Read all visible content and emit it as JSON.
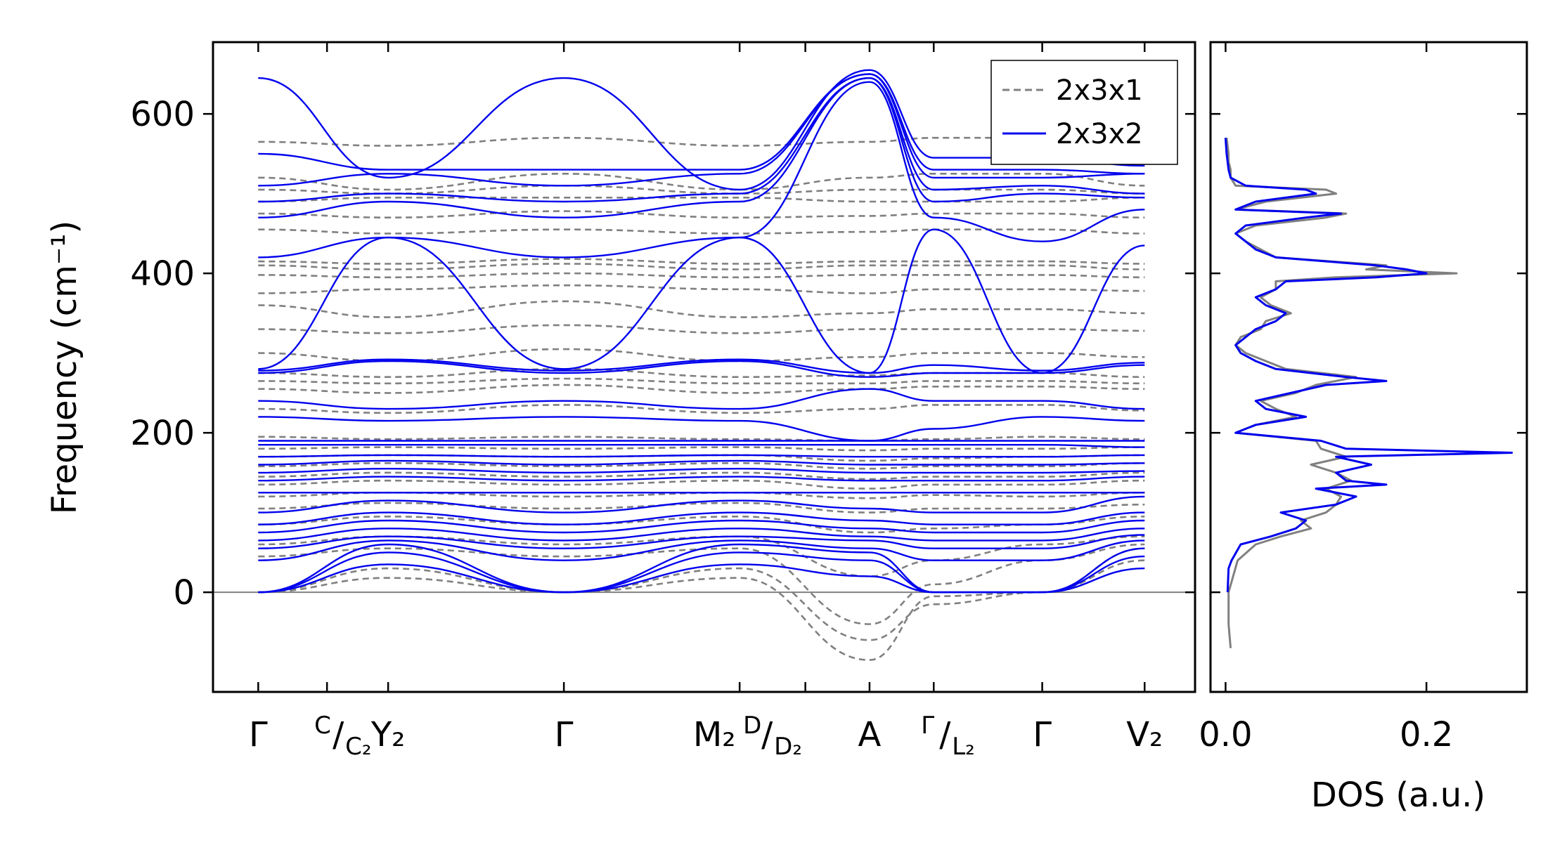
{
  "chart_data": [
    {
      "type": "line",
      "subtype": "phonon-band-structure",
      "ylabel": "Frequency (cm⁻¹)",
      "ylim": [
        -125,
        690
      ],
      "yticks": [
        0,
        200,
        400,
        600
      ],
      "ytick_labels": [
        "0",
        "200",
        "400",
        "600"
      ],
      "zero_line": true,
      "kpath_segments": [
        [
          "Γ",
          "C/C₂",
          "Y₂",
          "Γ",
          "M₂",
          "D/D₂",
          "A",
          "Γ/L₂"
        ],
        [
          "Γ/L₂",
          "Γ",
          "V₂"
        ]
      ],
      "xticks": [
        {
          "x": 0.0,
          "label": "Γ",
          "main": "Γ",
          "sup": "",
          "sub": ""
        },
        {
          "x": 0.225,
          "label": "C/C₂",
          "main": "",
          "sup": "C",
          "sub": "C₂"
        },
        {
          "x": 0.425,
          "label": "Y₂",
          "main": "Y₂",
          "sup": "",
          "sub": ""
        },
        {
          "x": 1.0,
          "label": "Γ",
          "main": "Γ",
          "sup": "",
          "sub": ""
        },
        {
          "x": 1.575,
          "label": "M₂ D/D₂",
          "main": "M₂",
          "sup": "D",
          "sub": "D₂"
        },
        {
          "x": 1.79,
          "label": "",
          "main": "",
          "sup": "",
          "sub": ""
        },
        {
          "x": 2.0,
          "label": "A",
          "main": "A",
          "sup": "",
          "sub": ""
        },
        {
          "x": 2.21,
          "label": "Γ/L₂",
          "main": "",
          "sup": "Γ",
          "sub": "L₂"
        },
        {
          "x": 2.565,
          "label": "Γ",
          "main": "Γ",
          "sup": "",
          "sub": ""
        },
        {
          "x": 2.9,
          "label": "V₂",
          "main": "V₂",
          "sup": "",
          "sub": ""
        }
      ],
      "xlim": [
        -0.148,
        3.065
      ],
      "legend": {
        "placement": "top-right"
      },
      "series": [
        {
          "name": "2x3x1",
          "color": "#808080",
          "dash": true,
          "path_x": [
            0.0,
            0.425,
            1.0,
            1.575,
            2.0,
            2.21,
            2.565,
            2.9
          ],
          "bands": [
            [
              0,
              18,
              0,
              18,
              -85,
              -5,
              0,
              40
            ],
            [
              0,
              30,
              0,
              30,
              -60,
              -15,
              0,
              55
            ],
            [
              45,
              55,
              45,
              55,
              -40,
              10,
              40,
              60
            ],
            [
              60,
              70,
              60,
              70,
              20,
              40,
              60,
              70
            ],
            [
              85,
              95,
              85,
              95,
              75,
              80,
              85,
              95
            ],
            [
              105,
              112,
              105,
              112,
              100,
              105,
              105,
              110
            ],
            [
              120,
              125,
              120,
              125,
              118,
              122,
              120,
              125
            ],
            [
              135,
              140,
              135,
              140,
              130,
              135,
              135,
              140
            ],
            [
              145,
              150,
              145,
              150,
              142,
              145,
              145,
              150
            ],
            [
              158,
              162,
              158,
              162,
              155,
              158,
              158,
              162
            ],
            [
              170,
              172,
              170,
              172,
              165,
              168,
              170,
              172
            ],
            [
              180,
              182,
              180,
              182,
              178,
              180,
              180,
              182
            ],
            [
              195,
              192,
              195,
              192,
              190,
              192,
              195,
              192
            ],
            [
              230,
              225,
              235,
              225,
              230,
              235,
              235,
              228
            ],
            [
              255,
              250,
              260,
              250,
              255,
              258,
              258,
              255
            ],
            [
              265,
              262,
              268,
              262,
              262,
              265,
              265,
              262
            ],
            [
              275,
              270,
              280,
              270,
              272,
              275,
              275,
              270
            ],
            [
              300,
              290,
              305,
              290,
              295,
              300,
              300,
              295
            ],
            [
              330,
              325,
              335,
              325,
              330,
              330,
              330,
              328
            ],
            [
              360,
              345,
              365,
              345,
              350,
              355,
              355,
              350
            ],
            [
              375,
              380,
              385,
              380,
              375,
              380,
              380,
              378
            ],
            [
              398,
              395,
              400,
              395,
              398,
              398,
              398,
              395
            ],
            [
              410,
              405,
              412,
              405,
              410,
              410,
              410,
              405
            ],
            [
              415,
              412,
              418,
              412,
              415,
              415,
              415,
              412
            ],
            [
              455,
              450,
              455,
              450,
              452,
              455,
              455,
              450
            ],
            [
              475,
              470,
              478,
              470,
              472,
              475,
              475,
              470
            ],
            [
              490,
              495,
              495,
              495,
              490,
              490,
              490,
              495
            ],
            [
              505,
              500,
              510,
              500,
              505,
              505,
              505,
              500
            ],
            [
              520,
              505,
              525,
              505,
              520,
              525,
              525,
              510
            ],
            [
              565,
              560,
              570,
              560,
              565,
              570,
              570,
              565
            ]
          ]
        },
        {
          "name": "2x3x2",
          "color": "#0000ee",
          "dash": false,
          "path_x": [
            0.0,
            0.425,
            1.0,
            1.575,
            2.0,
            2.21,
            2.565,
            2.9
          ],
          "bands": [
            [
              0,
              35,
              0,
              35,
              20,
              0,
              0,
              30
            ],
            [
              0,
              50,
              0,
              50,
              40,
              0,
              0,
              45
            ],
            [
              0,
              60,
              0,
              60,
              50,
              0,
              0,
              55
            ],
            [
              40,
              65,
              40,
              65,
              55,
              40,
              40,
              65
            ],
            [
              55,
              70,
              55,
              70,
              65,
              55,
              55,
              72
            ],
            [
              65,
              80,
              65,
              80,
              70,
              65,
              65,
              80
            ],
            [
              75,
              90,
              75,
              90,
              80,
              75,
              75,
              90
            ],
            [
              85,
              100,
              85,
              100,
              90,
              85,
              85,
              100
            ],
            [
              100,
              115,
              100,
              115,
              105,
              100,
              100,
              120
            ],
            [
              125,
              125,
              125,
              125,
              125,
              125,
              125,
              125
            ],
            [
              140,
              145,
              140,
              145,
              140,
              140,
              140,
              145
            ],
            [
              150,
              155,
              150,
              155,
              150,
              150,
              150,
              152
            ],
            [
              160,
              165,
              160,
              165,
              160,
              160,
              160,
              162
            ],
            [
              170,
              172,
              170,
              172,
              170,
              170,
              170,
              172
            ],
            [
              185,
              185,
              185,
              185,
              185,
              185,
              185,
              182
            ],
            [
              190,
              190,
              190,
              190,
              190,
              190,
              190,
              190
            ],
            [
              220,
              215,
              220,
              215,
              190,
              205,
              220,
              215
            ],
            [
              240,
              230,
              240,
              230,
              255,
              240,
              240,
              230
            ],
            [
              275,
              290,
              275,
              290,
              270,
              275,
              275,
              285
            ],
            [
              278,
              292,
              278,
              292,
              275,
              285,
              278,
              288
            ],
            [
              280,
              445,
              280,
              445,
              275,
              455,
              275,
              435
            ],
            [
              420,
              445,
              420,
              445,
              640,
              470,
              440,
              480
            ],
            [
              470,
              490,
              470,
              490,
              645,
              490,
              500,
              495
            ],
            [
              490,
              500,
              490,
              500,
              645,
              505,
              510,
              500
            ],
            [
              510,
              525,
              510,
              525,
              650,
              520,
              520,
              525
            ],
            [
              550,
              530,
              530,
              530,
              650,
              530,
              530,
              525
            ],
            [
              645,
              520,
              645,
              505,
              655,
              545,
              545,
              535
            ]
          ]
        }
      ]
    },
    {
      "type": "line",
      "subtype": "density-of-states",
      "xlabel": "DOS (a.u.)",
      "xlim": [
        -0.015,
        0.3
      ],
      "xticks": [
        0.0,
        0.2
      ],
      "xtick_labels": [
        "0.0",
        "0.2"
      ],
      "ylim": [
        -125,
        690
      ],
      "series": [
        {
          "name": "2x3x1",
          "color": "#808080",
          "y": [
            -70,
            -40,
            0,
            40,
            60,
            70,
            80,
            90,
            100,
            110,
            120,
            130,
            140,
            150,
            160,
            170,
            180,
            190,
            200,
            210,
            220,
            230,
            240,
            250,
            260,
            270,
            280,
            290,
            300,
            310,
            320,
            330,
            340,
            350,
            360,
            370,
            380,
            390,
            395,
            400,
            405,
            410,
            420,
            430,
            440,
            450,
            460,
            470,
            475,
            480,
            490,
            500,
            505,
            510,
            520,
            530,
            540,
            550,
            570
          ],
          "dos": [
            0.005,
            0.003,
            0.003,
            0.012,
            0.03,
            0.055,
            0.085,
            0.075,
            0.1,
            0.11,
            0.115,
            0.1,
            0.125,
            0.11,
            0.085,
            0.12,
            0.095,
            0.09,
            0.01,
            0.03,
            0.07,
            0.05,
            0.035,
            0.07,
            0.09,
            0.13,
            0.06,
            0.04,
            0.02,
            0.01,
            0.015,
            0.035,
            0.04,
            0.065,
            0.045,
            0.035,
            0.05,
            0.05,
            0.11,
            0.23,
            0.14,
            0.16,
            0.05,
            0.035,
            0.02,
            0.01,
            0.03,
            0.1,
            0.12,
            0.01,
            0.04,
            0.11,
            0.1,
            0.01,
            0.005,
            0.005,
            0.003,
            0.003,
            0.001
          ]
        },
        {
          "name": "2x3x2",
          "color": "#0000ee",
          "y": [
            0,
            30,
            40,
            60,
            70,
            80,
            90,
            100,
            110,
            120,
            130,
            135,
            140,
            150,
            160,
            170,
            175,
            180,
            190,
            200,
            210,
            220,
            230,
            240,
            250,
            260,
            265,
            270,
            280,
            290,
            300,
            310,
            320,
            330,
            340,
            350,
            360,
            370,
            380,
            390,
            395,
            400,
            405,
            410,
            420,
            430,
            440,
            450,
            460,
            470,
            475,
            480,
            490,
            500,
            505,
            510,
            520,
            530,
            540,
            550,
            570
          ],
          "dos": [
            0.002,
            0.003,
            0.006,
            0.015,
            0.045,
            0.07,
            0.08,
            0.055,
            0.11,
            0.13,
            0.09,
            0.16,
            0.12,
            0.11,
            0.145,
            0.11,
            0.285,
            0.12,
            0.095,
            0.01,
            0.03,
            0.08,
            0.04,
            0.03,
            0.065,
            0.1,
            0.16,
            0.12,
            0.05,
            0.03,
            0.015,
            0.01,
            0.02,
            0.03,
            0.05,
            0.06,
            0.04,
            0.03,
            0.05,
            0.06,
            0.15,
            0.2,
            0.18,
            0.15,
            0.05,
            0.03,
            0.02,
            0.01,
            0.02,
            0.08,
            0.115,
            0.01,
            0.03,
            0.09,
            0.08,
            0.02,
            0.005,
            0.003,
            0.002,
            0.001,
            0.0
          ]
        }
      ]
    }
  ]
}
